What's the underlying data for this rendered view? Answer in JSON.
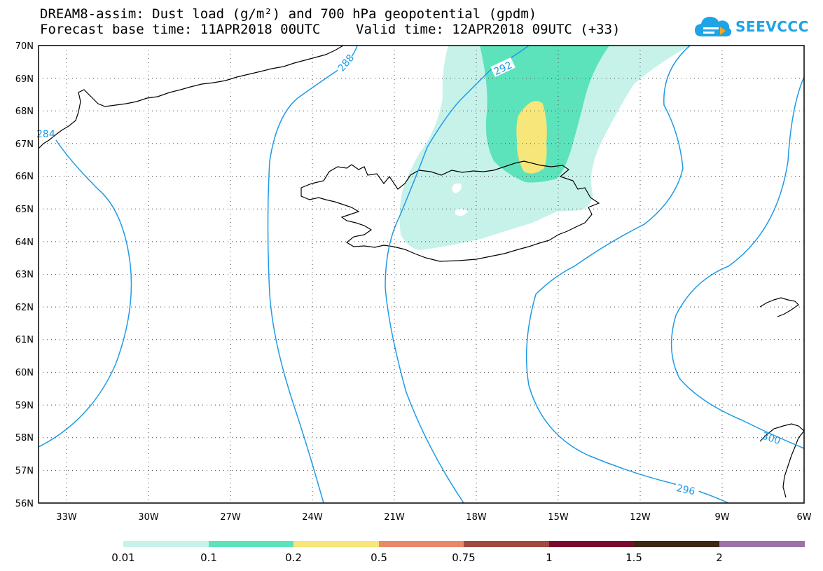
{
  "title": {
    "line1": "DREAM8-assim: Dust load (g/m²) and 700 hPa geopotential (gpdm)",
    "line2_left": "Forecast base time: 11APR2018 00UTC",
    "line2_right": "Valid time: 12APR2018 09UTC (+33)"
  },
  "logo": {
    "name": "SEEVCCC",
    "icon": "cloud-icon",
    "color": "#1ea3e6"
  },
  "map": {
    "lat_labels": [
      "70N",
      "69N",
      "68N",
      "67N",
      "66N",
      "65N",
      "64N",
      "63N",
      "62N",
      "61N",
      "60N",
      "59N",
      "58N",
      "57N",
      "56N"
    ],
    "lon_labels": [
      "33W",
      "30W",
      "27W",
      "24W",
      "21W",
      "18W",
      "15W",
      "12W",
      "9W",
      "6W"
    ],
    "contour_labels": [
      "288",
      "292",
      "296",
      "284",
      "300"
    ],
    "contour_color": "#1e9be6"
  },
  "legend": {
    "labels": [
      "0.01",
      "0.1",
      "0.2",
      "0.5",
      "0.75",
      "1",
      "1.5",
      "2"
    ],
    "colors": [
      "#c6f2ea",
      "#5ce3bb",
      "#f7e67a",
      "#e88a6a",
      "#a04a40",
      "#7a0a2e",
      "#3d2812",
      "#9c72a8"
    ]
  }
}
